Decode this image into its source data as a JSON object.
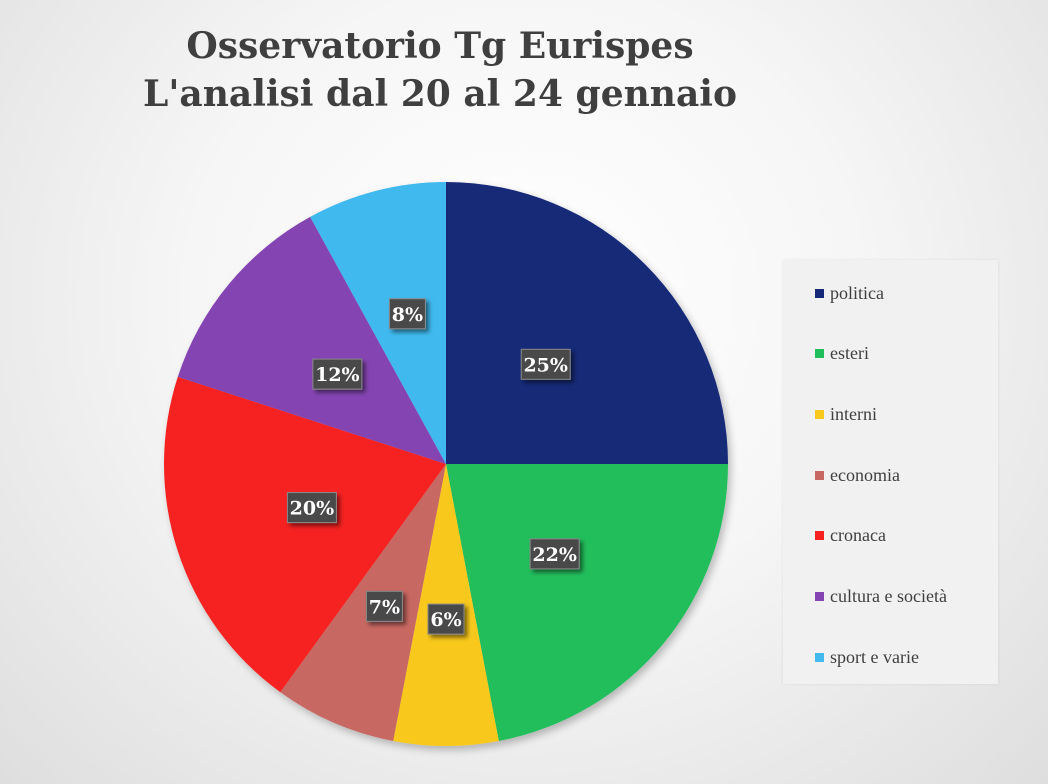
{
  "title": {
    "line1": "Osservatorio Tg Eurispes",
    "line2": "L'analisi dal 20 al 24 gennaio"
  },
  "chart_data": {
    "type": "pie",
    "title": "Osservatorio Tg Eurispes L'analisi dal 20 al 24 gennaio",
    "legend_position": "right",
    "categories": [
      "politica",
      "esteri",
      "interni",
      "economia",
      "cronaca",
      "cultura e società",
      "sport e varie"
    ],
    "values": [
      25,
      22,
      6,
      7,
      20,
      12,
      8
    ],
    "labels": [
      "25%",
      "22%",
      "6%",
      "7%",
      "20%",
      "12%",
      "8%"
    ],
    "colors": [
      "#162978",
      "#21be5c",
      "#f8c81b",
      "#c86862",
      "#f62020",
      "#8444b2",
      "#41b9ef"
    ]
  },
  "legend": {
    "items": [
      "politica",
      "esteri",
      "interni",
      "economia",
      "cronaca",
      "cultura e società",
      "sport e varie"
    ]
  }
}
